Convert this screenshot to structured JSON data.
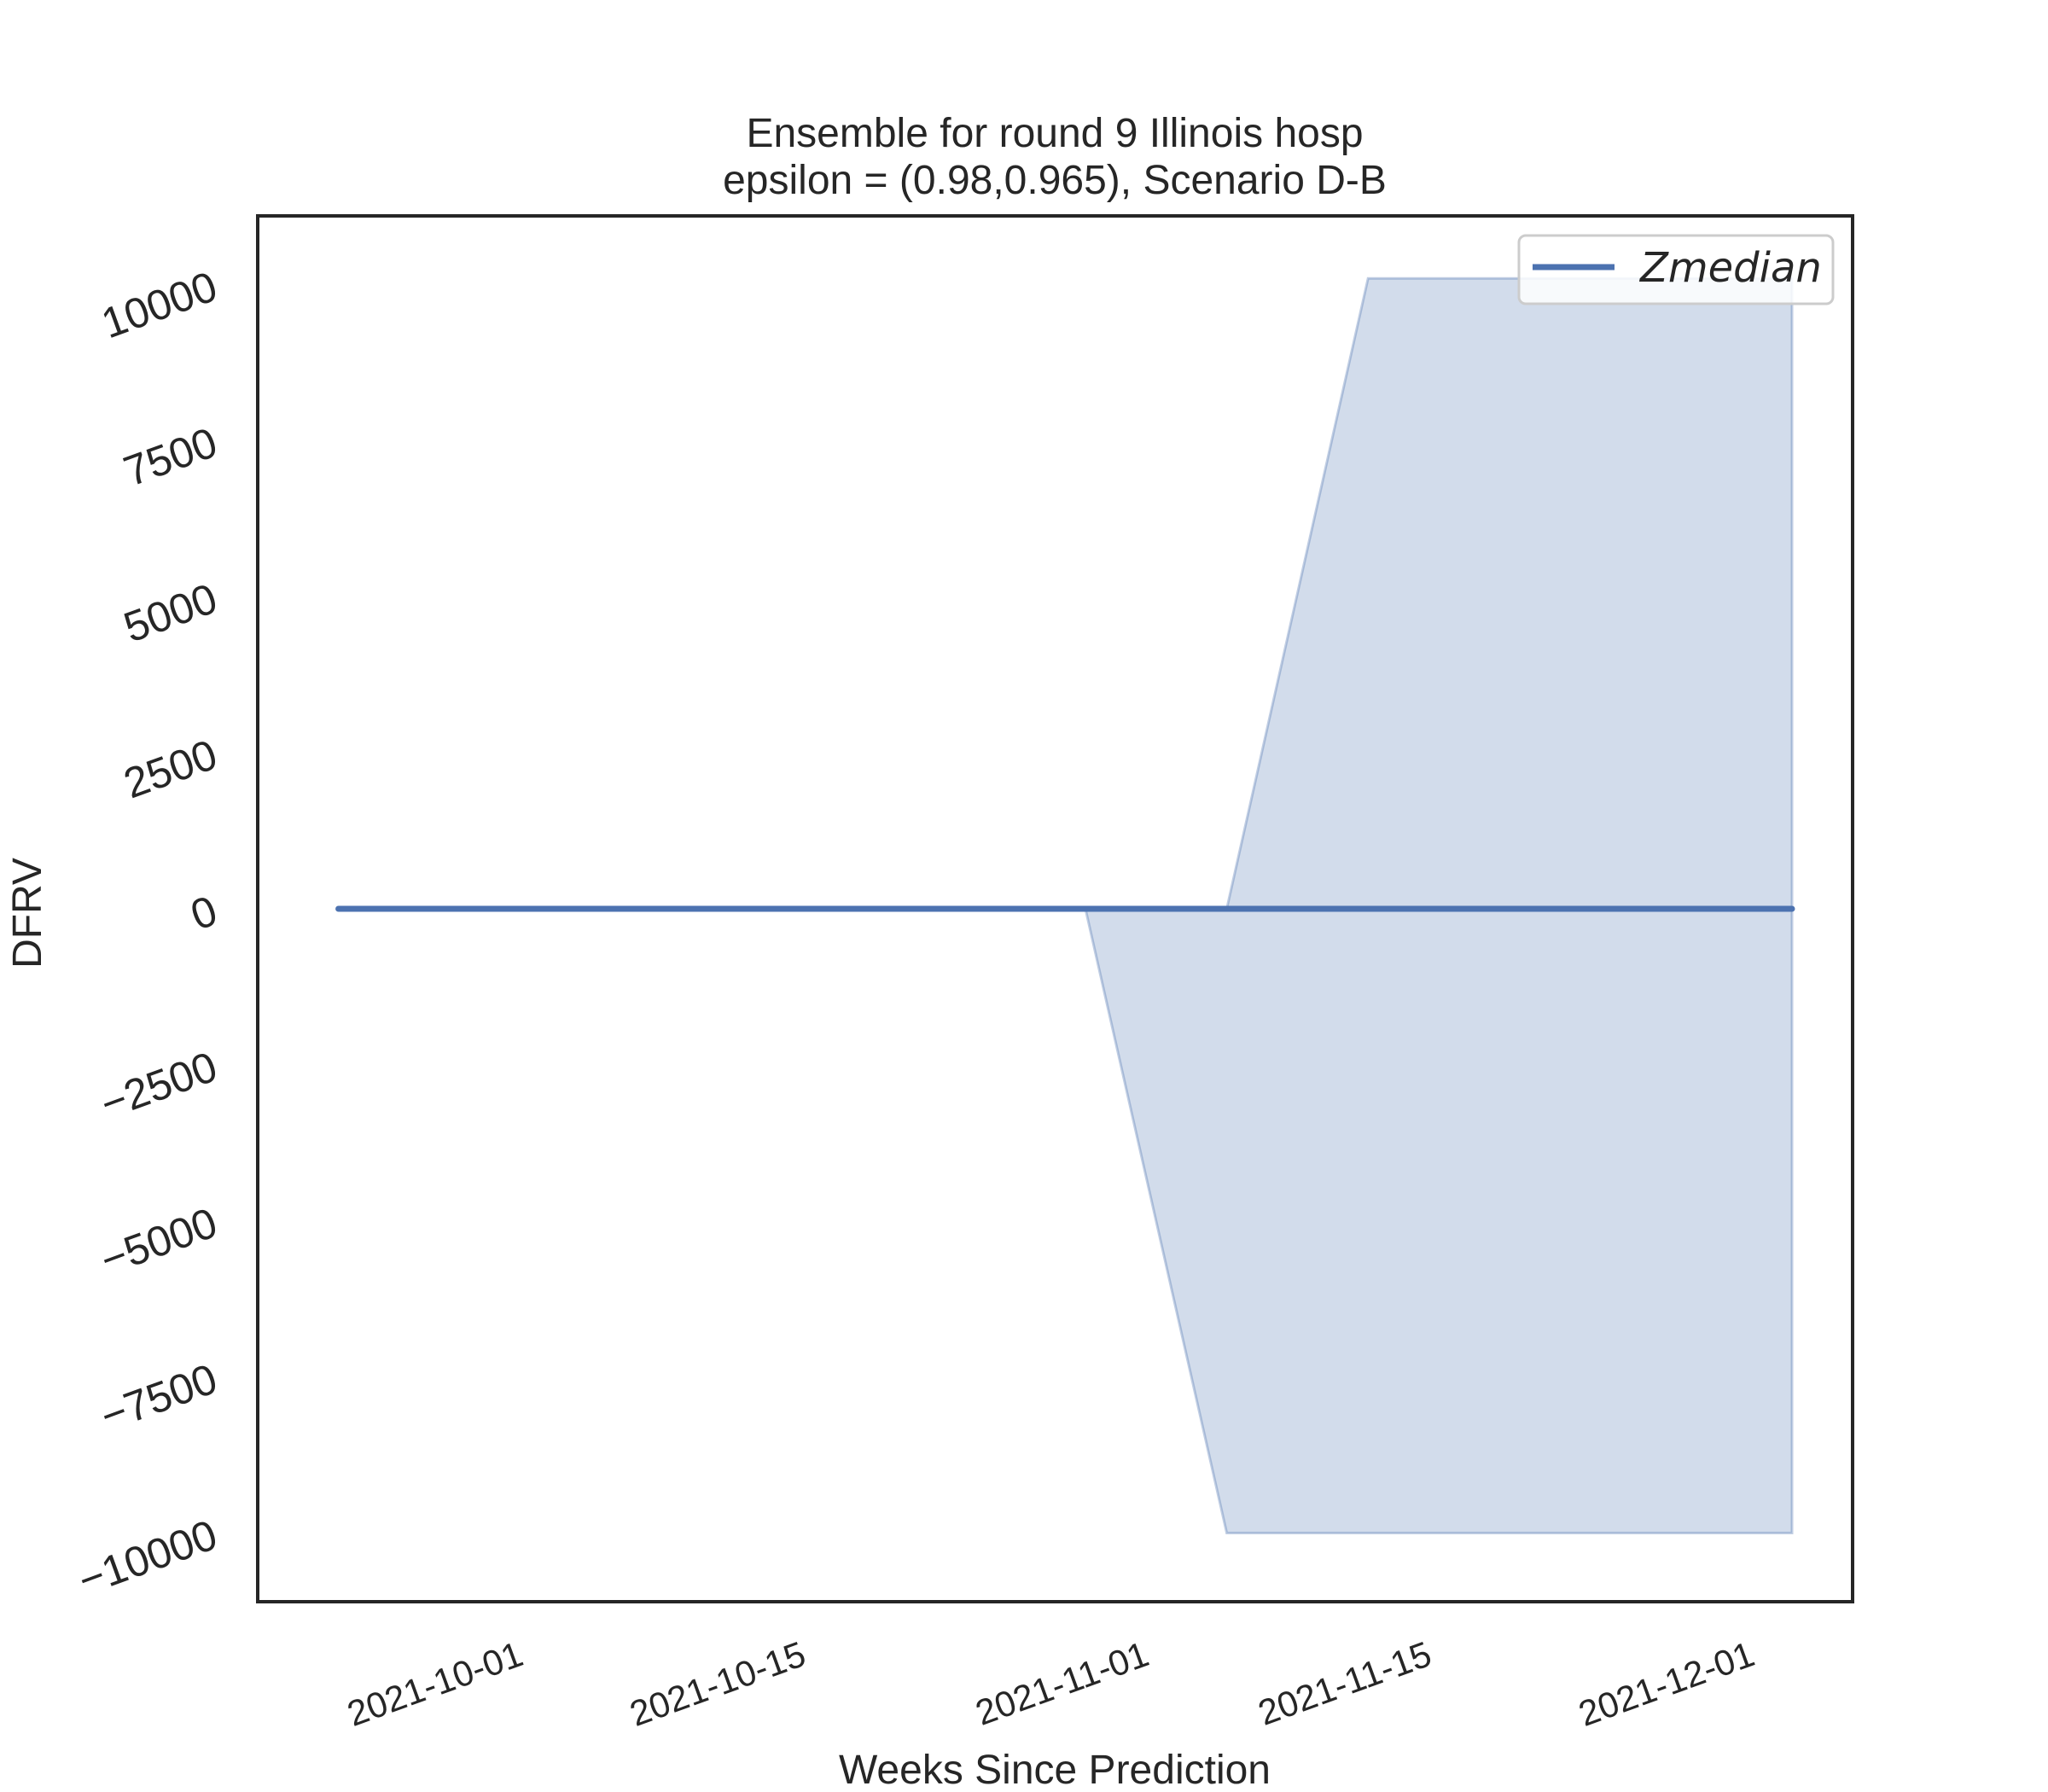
{
  "chart_data": {
    "type": "line",
    "title": "Ensemble for round 9 Illinois  hosp",
    "subtitle": "epsilon = (0.98,0.965), Scenario D-B",
    "xlabel": "Weeks Since Prediction",
    "ylabel": "DFRV",
    "x_ticks": [
      "2021-10-01",
      "2021-10-15",
      "2021-11-01",
      "2021-11-15",
      "2021-12-01"
    ],
    "y_ticks": [
      10000,
      7500,
      5000,
      2500,
      0,
      -2500,
      -5000,
      -7500,
      -10000
    ],
    "y_tick_labels": [
      "10000",
      "7500",
      "5000",
      "2500",
      "0",
      "−2500",
      "−5000",
      "−7500",
      "−10000"
    ],
    "xlim": [
      "2021-09-18",
      "2021-12-06"
    ],
    "ylim": [
      -11100,
      11100
    ],
    "grid": false,
    "legend_position": "top-right",
    "legend": [
      "Zmedian"
    ],
    "series": [
      {
        "name": "Zmedian",
        "color": "#4c72b0",
        "x": [
          "2021-09-22",
          "2021-10-29",
          "2021-11-05",
          "2021-11-12",
          "2021-12-03"
        ],
        "y": [
          0,
          0,
          0,
          0,
          0
        ]
      }
    ],
    "band": {
      "color": "#4c72b0",
      "opacity": 0.25,
      "x": [
        "2021-09-22",
        "2021-10-29",
        "2021-11-05",
        "2021-11-12",
        "2021-12-03"
      ],
      "lower": [
        0,
        0,
        -10000,
        -10000,
        -10000
      ],
      "upper": [
        0,
        0,
        0,
        10100,
        10100
      ]
    }
  }
}
